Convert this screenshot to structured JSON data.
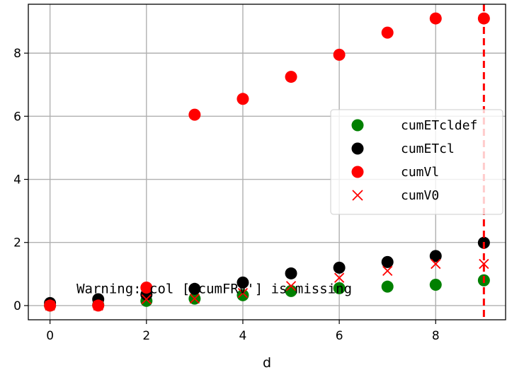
{
  "chart_data": {
    "type": "scatter",
    "xlabel": "d",
    "ylabel": "",
    "title": "",
    "xlim": [
      -0.45,
      9.45
    ],
    "ylim": [
      -0.45,
      9.55
    ],
    "xticks": [
      0,
      2,
      4,
      6,
      8
    ],
    "yticks": [
      0,
      2,
      4,
      6,
      8
    ],
    "grid": true,
    "legend": "center-right",
    "series": [
      {
        "name": "cumETcldef",
        "marker": "circle",
        "color": "#008000",
        "x": [
          0,
          1,
          2,
          3,
          4,
          5,
          6,
          7,
          8,
          9
        ],
        "y": [
          0.0,
          0.02,
          0.15,
          0.22,
          0.33,
          0.46,
          0.55,
          0.6,
          0.66,
          0.8
        ]
      },
      {
        "name": "cumETcl",
        "marker": "circle",
        "color": "#000000",
        "x": [
          0,
          1,
          2,
          3,
          4,
          5,
          6,
          7,
          8,
          9
        ],
        "y": [
          0.08,
          0.2,
          0.35,
          0.53,
          0.73,
          1.02,
          1.2,
          1.38,
          1.57,
          1.99
        ]
      },
      {
        "name": "cumVl",
        "marker": "circle",
        "color": "#ff0000",
        "x": [
          0,
          1,
          2,
          3,
          4,
          5,
          6,
          7,
          8,
          9
        ],
        "y": [
          0.0,
          0.0,
          0.57,
          6.05,
          6.55,
          7.25,
          7.95,
          8.65,
          9.1,
          9.1
        ]
      },
      {
        "name": "cumV0",
        "marker": "x",
        "color": "#ff0000",
        "x": [
          0,
          1,
          2,
          3,
          4,
          5,
          6,
          7,
          8,
          9
        ],
        "y": [
          0.0,
          0.0,
          0.2,
          0.22,
          0.4,
          0.62,
          0.88,
          1.1,
          1.32,
          1.32
        ]
      }
    ],
    "vline": {
      "x": 9,
      "color": "#ff0000",
      "style": "dashed"
    },
    "annotation": {
      "text": "Warning: col ['cumFRV'] is missing",
      "x": 0.55,
      "y": 0.55
    }
  }
}
